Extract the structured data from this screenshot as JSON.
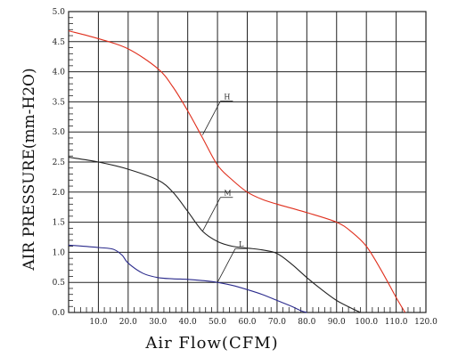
{
  "chart_data": {
    "type": "line",
    "xlabel": "Air Flow(CFM)",
    "ylabel": "AIR PRESSURE(mm-H2O)",
    "xlim": [
      0,
      120
    ],
    "ylim": [
      0,
      5
    ],
    "grid": true,
    "x_ticks": [
      10,
      20,
      30,
      40,
      50,
      60,
      70,
      80,
      90,
      100,
      110,
      120
    ],
    "x_tick_labels": [
      "10.0",
      "20.0",
      "30.0",
      "40.0",
      "50.0",
      "60.0",
      "70.0",
      "80.0",
      "90.0",
      "100.0",
      "110.0",
      "120.0"
    ],
    "y_ticks": [
      0,
      0.5,
      1,
      1.5,
      2,
      2.5,
      3,
      3.5,
      4,
      4.5,
      5
    ],
    "y_tick_labels": [
      "0.0",
      "0.5",
      "1.0",
      "1.5",
      "2.0",
      "2.5",
      "3.0",
      "3.5",
      "4.0",
      "4.5",
      "5.0"
    ],
    "series": [
      {
        "name": "H",
        "color": "#e0301e",
        "x": [
          0,
          10,
          20,
          30,
          35,
          40,
          45,
          50,
          55,
          60,
          65,
          70,
          80,
          90,
          95,
          100,
          105,
          110,
          113
        ],
        "y": [
          4.68,
          4.55,
          4.38,
          4.05,
          3.75,
          3.35,
          2.9,
          2.45,
          2.2,
          2.0,
          1.88,
          1.8,
          1.66,
          1.5,
          1.34,
          1.1,
          0.7,
          0.25,
          0
        ]
      },
      {
        "name": "M",
        "color": "#222222",
        "x": [
          0,
          10,
          20,
          30,
          35,
          40,
          45,
          50,
          55,
          60,
          65,
          70,
          75,
          80,
          85,
          90,
          95,
          98
        ],
        "y": [
          2.58,
          2.5,
          2.38,
          2.2,
          2.0,
          1.68,
          1.35,
          1.18,
          1.1,
          1.07,
          1.04,
          0.98,
          0.8,
          0.58,
          0.38,
          0.2,
          0.07,
          0
        ]
      },
      {
        "name": "L",
        "color": "#2a2a8c",
        "x": [
          0,
          10,
          15,
          18,
          20,
          25,
          30,
          35,
          40,
          45,
          50,
          55,
          60,
          65,
          70,
          75,
          78,
          80
        ],
        "y": [
          1.12,
          1.08,
          1.05,
          0.95,
          0.82,
          0.65,
          0.58,
          0.56,
          0.55,
          0.53,
          0.5,
          0.45,
          0.38,
          0.3,
          0.2,
          0.1,
          0.03,
          0
        ]
      }
    ],
    "curve_labels": [
      {
        "series": "H",
        "text": "H",
        "anchor_x": 45,
        "anchor_y": 2.95
      },
      {
        "series": "M",
        "text": "M",
        "anchor_x": 45,
        "anchor_y": 1.35
      },
      {
        "series": "L",
        "text": "L",
        "anchor_x": 50,
        "anchor_y": 0.5
      }
    ]
  }
}
